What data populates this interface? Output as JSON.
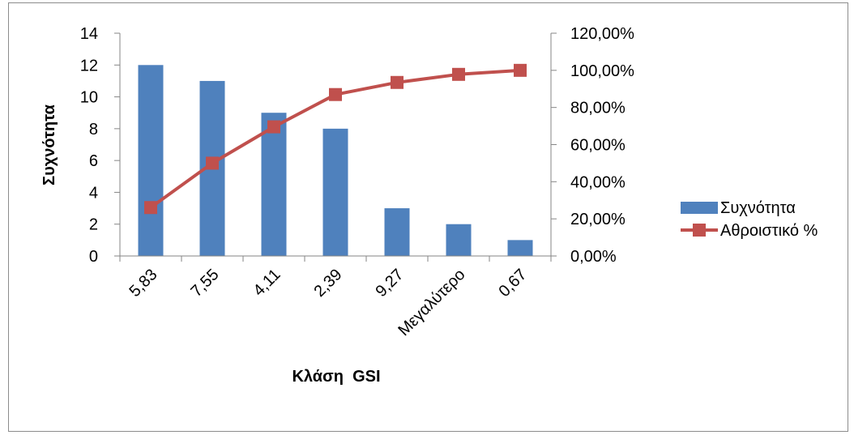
{
  "chart_data": {
    "type": "bar",
    "categories": [
      "5,83",
      "7,55",
      "4,11",
      "2,39",
      "9,27",
      "Μεγαλύτερο",
      "0,67"
    ],
    "series": [
      {
        "name": "Συχνότητα",
        "chart": "bar",
        "axis": "left",
        "color": "#4F81BD",
        "values": [
          12,
          11,
          9,
          8,
          3,
          2,
          1
        ]
      },
      {
        "name": "Αθροιστικό %",
        "chart": "line",
        "axis": "right",
        "color": "#C0504D",
        "marker": "square",
        "values": [
          0.2609,
          0.5,
          0.6957,
          0.8696,
          0.9348,
          0.9783,
          1.0
        ]
      }
    ],
    "xlabel": "Κλάση  GSI",
    "ylabel": "Συχνότητα",
    "ylim": [
      0,
      14
    ],
    "y_ticks": [
      "0",
      "2",
      "4",
      "6",
      "8",
      "10",
      "12",
      "14"
    ],
    "y2lim": [
      0,
      1.2
    ],
    "y2_ticks": [
      "0,00%",
      "20,00%",
      "40,00%",
      "60,00%",
      "80,00%",
      "100,00%",
      "120,00%"
    ],
    "grid": false,
    "legend": "right"
  }
}
